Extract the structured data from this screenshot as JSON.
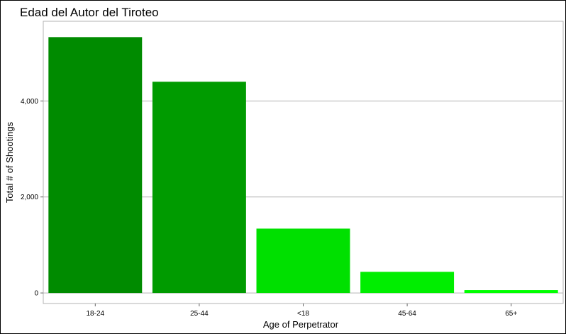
{
  "chart_data": {
    "type": "bar",
    "title": "Edad del Autor del Tiroteo",
    "xlabel": "Age of Perpetrator",
    "ylabel": "Total # of Shootings",
    "categories": [
      "18-24",
      "25-44",
      "<18",
      "45-64",
      "65+"
    ],
    "values": [
      5330,
      4400,
      1340,
      440,
      60
    ],
    "colors": [
      "#008b00",
      "#009b00",
      "#00e000",
      "#00ee00",
      "#00ff00"
    ],
    "ylim": [
      -220,
      5660
    ],
    "yticks": [
      0,
      2000,
      4000
    ],
    "ytick_labels": [
      "0",
      "2,000",
      "4,000"
    ],
    "grid": true,
    "legend": "none"
  }
}
